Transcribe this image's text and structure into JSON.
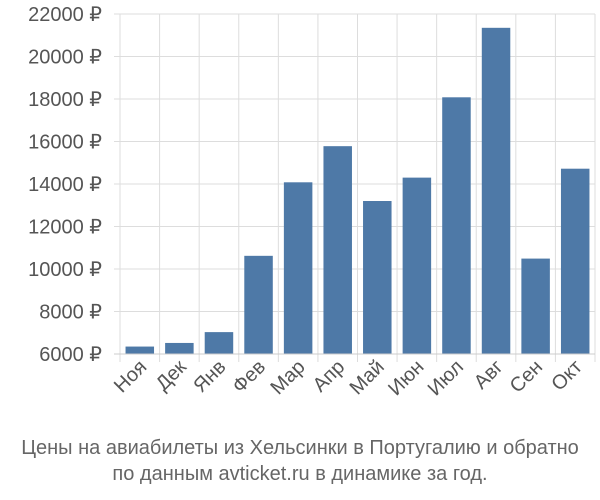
{
  "chart_data": {
    "type": "bar",
    "categories": [
      "Ноя",
      "Дек",
      "Янв",
      "Фев",
      "Мар",
      "Апр",
      "Май",
      "Июн",
      "Июл",
      "Авг",
      "Сен",
      "Окт"
    ],
    "values": [
      6350,
      6520,
      7030,
      10620,
      14080,
      15780,
      13200,
      14300,
      18080,
      21350,
      10490,
      14720
    ],
    "ylim": [
      6000,
      22000
    ],
    "yticks": [
      6000,
      8000,
      10000,
      12000,
      14000,
      16000,
      18000,
      20000,
      22000
    ],
    "ytick_labels": [
      "6000 ₽",
      "8000 ₽",
      "10000 ₽",
      "12000 ₽",
      "14000 ₽",
      "16000 ₽",
      "18000 ₽",
      "20000 ₽",
      "22000 ₽"
    ],
    "grid": true,
    "bar_color": "#4e79a7",
    "title": "",
    "xlabel": "",
    "ylabel": ""
  },
  "caption": {
    "line1": "Цены на авиабилеты из Хельсинки в Португалию и обратно",
    "line2": "по данным avticket.ru в динамике за год."
  }
}
